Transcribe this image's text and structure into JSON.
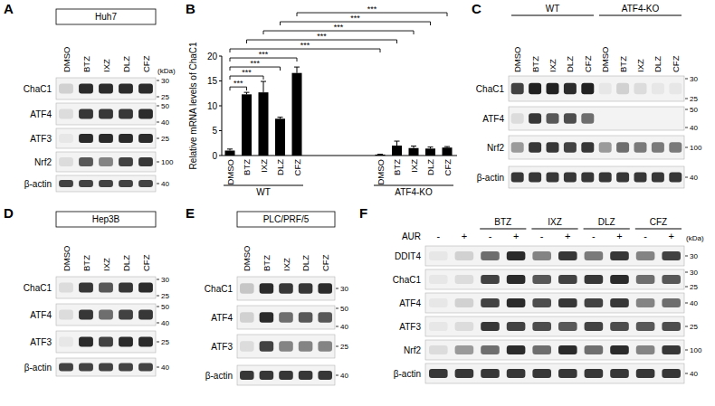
{
  "blots": [
    {
      "letter": "A",
      "cell_line": "Huh7",
      "unit": "(kDa)",
      "lanes": [
        "DMSO",
        "BTZ",
        "IXZ",
        "DLZ",
        "CFZ"
      ],
      "rows": [
        {
          "name": "ChaC1",
          "markers": [
            30,
            25
          ],
          "intensity": [
            0.15,
            0.9,
            0.9,
            0.9,
            0.9
          ]
        },
        {
          "name": "ATF4",
          "markers": [
            50,
            40
          ],
          "intensity": [
            0.1,
            0.85,
            0.85,
            0.85,
            0.9
          ]
        },
        {
          "name": "ATF3",
          "markers": [
            25
          ],
          "intensity": [
            0.05,
            0.9,
            0.9,
            0.9,
            0.9
          ]
        },
        {
          "name": "Nrf2",
          "markers": [
            100
          ],
          "intensity": [
            0.1,
            0.7,
            0.5,
            0.8,
            0.85
          ]
        },
        {
          "name": "β-actin",
          "markers": [
            40
          ],
          "intensity": [
            0.8,
            0.8,
            0.8,
            0.8,
            0.8
          ]
        }
      ]
    },
    {
      "letter": "C",
      "groups": [
        {
          "label": "WT",
          "lanes": 5
        },
        {
          "label": "ATF4-KO",
          "lanes": 5
        }
      ],
      "lanes": [
        "DMSO",
        "BTZ",
        "IXZ",
        "DLZ",
        "CFZ",
        "DMSO",
        "BTZ",
        "IXZ",
        "DLZ",
        "CFZ"
      ],
      "rows": [
        {
          "name": "ChaC1",
          "markers": [
            30,
            25
          ],
          "intensity": [
            0.8,
            0.95,
            0.95,
            0.9,
            0.95,
            0.05,
            0.15,
            0.1,
            0.05,
            0.05
          ]
        },
        {
          "name": "ATF4",
          "markers": [
            50,
            40
          ],
          "intensity": [
            0.1,
            0.85,
            0.7,
            0.75,
            0.6,
            0,
            0,
            0,
            0,
            0
          ]
        },
        {
          "name": "Nrf2",
          "markers": [
            100
          ],
          "intensity": [
            0.4,
            0.85,
            0.85,
            0.8,
            0.85,
            0.4,
            0.6,
            0.55,
            0.55,
            0.55
          ]
        },
        {
          "name": "β-actin",
          "markers": [
            40
          ],
          "intensity": [
            0.85,
            0.85,
            0.85,
            0.85,
            0.85,
            0.85,
            0.85,
            0.85,
            0.85,
            0.85
          ]
        }
      ]
    },
    {
      "letter": "D",
      "cell_line": "Hep3B",
      "lanes": [
        "DMSO",
        "BTZ",
        "IXZ",
        "DLZ",
        "CFZ"
      ],
      "rows": [
        {
          "name": "ChaC1",
          "markers": [
            30,
            25
          ],
          "intensity": [
            0.1,
            0.85,
            0.7,
            0.85,
            0.9
          ]
        },
        {
          "name": "ATF4",
          "markers": [
            50,
            40
          ],
          "intensity": [
            0.1,
            0.85,
            0.6,
            0.8,
            0.85
          ]
        },
        {
          "name": "ATF3",
          "markers": [
            25
          ],
          "intensity": [
            0.05,
            0.9,
            0.8,
            0.9,
            0.9
          ]
        },
        {
          "name": "β-actin",
          "markers": [
            40
          ],
          "intensity": [
            0.8,
            0.8,
            0.8,
            0.8,
            0.8
          ]
        }
      ]
    },
    {
      "letter": "E",
      "cell_line": "PLC/PRF/5",
      "lanes": [
        "DMSO",
        "BTZ",
        "IXZ",
        "DLZ",
        "CFZ"
      ],
      "rows": [
        {
          "name": "ChaC1",
          "markers": [
            30
          ],
          "intensity": [
            0.2,
            0.9,
            0.85,
            0.85,
            0.9
          ]
        },
        {
          "name": "ATF4",
          "markers": [
            50,
            40
          ],
          "intensity": [
            0.15,
            0.9,
            0.6,
            0.7,
            0.7
          ]
        },
        {
          "name": "ATF3",
          "markers": [
            25
          ],
          "intensity": [
            0.1,
            0.8,
            0.5,
            0.5,
            0.5
          ]
        },
        {
          "name": "β-actin",
          "markers": [
            40
          ],
          "intensity": [
            0.85,
            0.85,
            0.85,
            0.85,
            0.85
          ]
        }
      ]
    },
    {
      "letter": "F",
      "unit": "(kDa)",
      "groups": [
        {
          "label": null,
          "lanes": 2
        },
        {
          "label": "BTZ",
          "lanes": 2
        },
        {
          "label": "IXZ",
          "lanes": 2
        },
        {
          "label": "DLZ",
          "lanes": 2
        },
        {
          "label": "CFZ",
          "lanes": 2
        }
      ],
      "treatment": "AUR",
      "treatment_lanes": [
        "-",
        "+",
        "-",
        "+",
        "-",
        "+",
        "-",
        "+",
        "-",
        "+"
      ],
      "rows": [
        {
          "name": "DDIT4",
          "markers": [
            30
          ],
          "intensity": [
            0.05,
            0.15,
            0.6,
            0.9,
            0.5,
            0.85,
            0.55,
            0.85,
            0.5,
            0.8
          ]
        },
        {
          "name": "ChaC1",
          "markers": [
            30,
            25
          ],
          "intensity": [
            0.05,
            0.1,
            0.8,
            0.9,
            0.7,
            0.8,
            0.85,
            0.9,
            0.6,
            0.7
          ]
        },
        {
          "name": "ATF4",
          "markers": [
            40
          ],
          "intensity": [
            0.05,
            0.15,
            0.8,
            0.9,
            0.75,
            0.85,
            0.8,
            0.85,
            0.5,
            0.6
          ]
        },
        {
          "name": "ATF3",
          "markers": [
            25
          ],
          "intensity": [
            0.05,
            0.1,
            0.85,
            0.8,
            0.75,
            0.7,
            0.8,
            0.75,
            0.7,
            0.75
          ]
        },
        {
          "name": "Nrf2",
          "markers": [
            100
          ],
          "intensity": [
            0.1,
            0.4,
            0.6,
            0.9,
            0.6,
            0.9,
            0.6,
            0.9,
            0.5,
            0.85
          ]
        },
        {
          "name": "β-actin",
          "markers": [
            40
          ],
          "intensity": [
            0.85,
            0.85,
            0.85,
            0.85,
            0.85,
            0.85,
            0.85,
            0.85,
            0.85,
            0.85
          ]
        }
      ]
    }
  ],
  "chart_data": {
    "letter": "B",
    "type": "bar",
    "y_label": "Relative mRNA levels of ChaC1",
    "categories": [
      "DMSO",
      "BTZ",
      "IXZ",
      "DLZ",
      "CFZ",
      "DMSO",
      "BTZ",
      "IXZ",
      "DLZ",
      "CFZ"
    ],
    "groups": [
      {
        "label": "WT",
        "count": 5
      },
      {
        "label": "ATF4-KO",
        "count": 5
      }
    ],
    "values": [
      1.0,
      12.3,
      12.7,
      7.4,
      16.6,
      0.2,
      2.0,
      1.5,
      1.4,
      1.6
    ],
    "errors": [
      0.3,
      0.4,
      2.2,
      0.3,
      1.2,
      0.05,
      0.9,
      0.4,
      0.3,
      0.2
    ],
    "color": "#000000",
    "ylim": [
      0,
      20
    ],
    "yticks": [
      0,
      5,
      10,
      15,
      20
    ],
    "comparisons": [
      {
        "from": 0,
        "to": 1,
        "label": "***"
      },
      {
        "from": 0,
        "to": 2,
        "label": "***"
      },
      {
        "from": 0,
        "to": 3,
        "label": "***"
      },
      {
        "from": 0,
        "to": 4,
        "label": "***"
      },
      {
        "from": 0,
        "to": 5,
        "label": "***"
      },
      {
        "from": 1,
        "to": 6,
        "label": "***"
      },
      {
        "from": 2,
        "to": 7,
        "label": "***"
      },
      {
        "from": 3,
        "to": 8,
        "label": "***"
      },
      {
        "from": 4,
        "to": 9,
        "label": "***"
      }
    ]
  }
}
